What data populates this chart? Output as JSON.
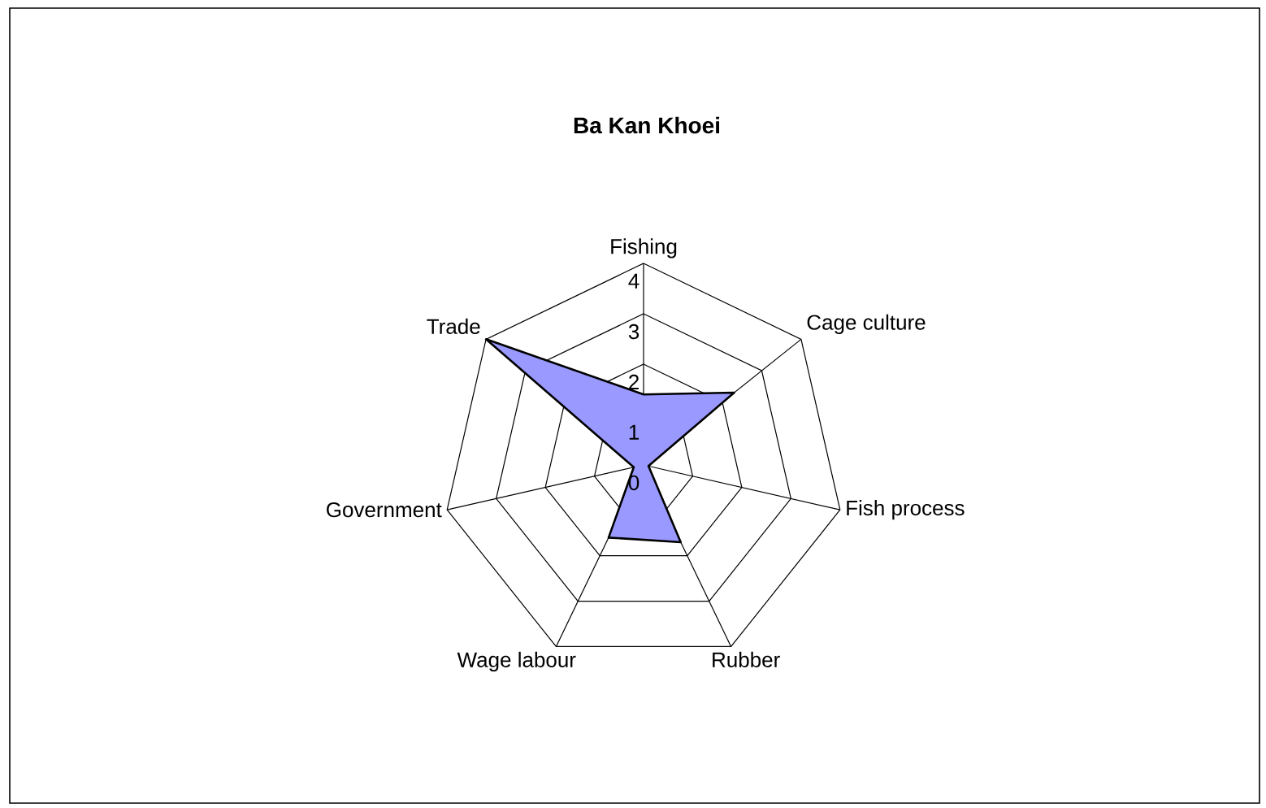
{
  "chart_data": {
    "type": "radar",
    "title": "Ba Kan Khoei",
    "categories": [
      "Fishing",
      "Cage culture",
      "Fish process",
      "Rubber",
      "Wage labour",
      "Government",
      "Trade"
    ],
    "series": [
      {
        "color": "#9999ff",
        "values": [
          1.4,
          2.3,
          0.1,
          1.7,
          1.6,
          0.2,
          4
        ]
      }
    ],
    "ylim": [
      0,
      4
    ],
    "yticks": [
      0,
      1,
      2,
      3,
      4
    ],
    "grid": true
  }
}
